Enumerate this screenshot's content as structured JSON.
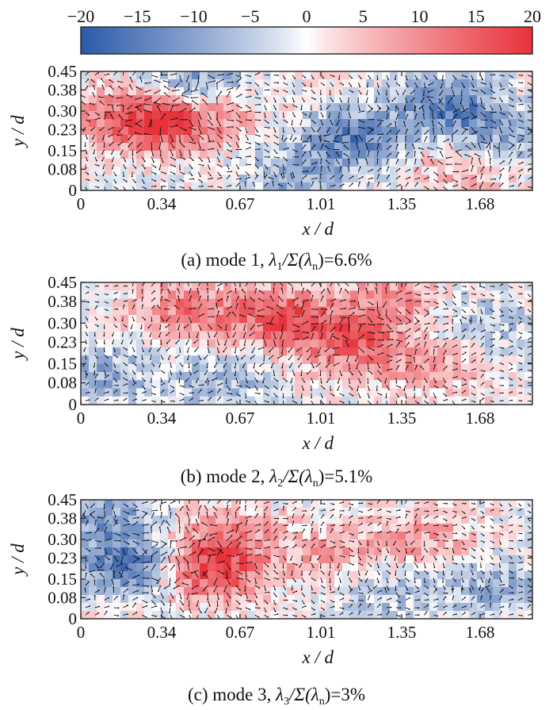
{
  "colorbar": {
    "min": -20,
    "max": 20,
    "ticks": [
      "−20",
      "−15",
      "−10",
      "−5",
      "0",
      "5",
      "10",
      "15",
      "20"
    ],
    "colors": {
      "negative": "#2c5aa8",
      "zero": "#ffffff",
      "positive": "#e8323a"
    }
  },
  "chart_data": [
    {
      "type": "heatmap",
      "mode": "mode 1",
      "caption": {
        "prefix": "(a) mode 1,",
        "lambda_sub": "1",
        "ratio": "/Σ(",
        "sub_n": "n",
        "value": ")=6.6%"
      },
      "xlabel": "x / d",
      "ylabel": "y / d",
      "xticks": [
        "0",
        "0.34",
        "0.67",
        "1.01",
        "1.35",
        "1.68"
      ],
      "yticks": [
        "0",
        "0.08",
        "0.15",
        "0.23",
        "0.30",
        "0.38",
        "0.45"
      ],
      "xlim": [
        0,
        1.9
      ],
      "ylim": [
        0,
        0.45
      ],
      "energy_fraction_percent": 6.6,
      "vorticity_features": [
        {
          "x": 0.32,
          "y": 0.25,
          "value": 18
        },
        {
          "x": 0.58,
          "y": 0.3,
          "value": 8
        },
        {
          "x": 0.12,
          "y": 0.3,
          "value": 6
        },
        {
          "x": 0.5,
          "y": 0.41,
          "value": -12
        },
        {
          "x": 1.15,
          "y": 0.2,
          "value": -14
        },
        {
          "x": 1.55,
          "y": 0.32,
          "value": -15
        },
        {
          "x": 1.78,
          "y": 0.18,
          "value": -10
        },
        {
          "x": 0.9,
          "y": 0.05,
          "value": -9
        },
        {
          "x": 1.62,
          "y": 0.09,
          "value": 8
        }
      ]
    },
    {
      "type": "heatmap",
      "mode": "mode 2",
      "caption": {
        "prefix": "(b) mode 2,",
        "lambda_sub": "2",
        "ratio": "/Σ(",
        "sub_n": "n",
        "value": ")=5.1%"
      },
      "xlabel": "x / d",
      "ylabel": "y / d",
      "xticks": [
        "0",
        "0.34",
        "0.67",
        "1.01",
        "1.35",
        "1.68"
      ],
      "yticks": [
        "0",
        "0.08",
        "0.15",
        "0.23",
        "0.30",
        "0.38",
        "0.45"
      ],
      "xlim": [
        0,
        1.9
      ],
      "ylim": [
        0,
        0.45
      ],
      "energy_fraction_percent": 5.1,
      "vorticity_features": [
        {
          "x": 0.45,
          "y": 0.35,
          "value": 12
        },
        {
          "x": 0.85,
          "y": 0.32,
          "value": 16
        },
        {
          "x": 1.15,
          "y": 0.22,
          "value": 14
        },
        {
          "x": 1.3,
          "y": 0.38,
          "value": 10
        },
        {
          "x": 0.1,
          "y": 0.12,
          "value": -8
        },
        {
          "x": 0.6,
          "y": 0.08,
          "value": -7
        },
        {
          "x": 1.5,
          "y": 0.12,
          "value": 7
        },
        {
          "x": 1.7,
          "y": 0.3,
          "value": -6
        }
      ]
    },
    {
      "type": "heatmap",
      "mode": "mode 3",
      "caption": {
        "prefix": "(c) mode 3,",
        "lambda_sub": "3",
        "ratio": "/Σ(",
        "sub_n": "n",
        "value": ")=3%"
      },
      "xlabel": "x / d",
      "ylabel": "y / d",
      "xticks": [
        "0",
        "0.34",
        "0.67",
        "1.01",
        "1.35",
        "1.68"
      ],
      "yticks": [
        "0",
        "0.08",
        "0.15",
        "0.23",
        "0.30",
        "0.38",
        "0.45"
      ],
      "xlim": [
        0,
        1.9
      ],
      "ylim": [
        0,
        0.45
      ],
      "energy_fraction_percent": 3,
      "vorticity_features": [
        {
          "x": 0.2,
          "y": 0.2,
          "value": -16
        },
        {
          "x": 0.12,
          "y": 0.38,
          "value": -10
        },
        {
          "x": 0.55,
          "y": 0.18,
          "value": 18
        },
        {
          "x": 0.6,
          "y": 0.32,
          "value": 10
        },
        {
          "x": 1.05,
          "y": 0.25,
          "value": 7
        },
        {
          "x": 1.45,
          "y": 0.3,
          "value": 8
        },
        {
          "x": 1.75,
          "y": 0.12,
          "value": -8
        },
        {
          "x": 1.3,
          "y": 0.1,
          "value": -6
        }
      ]
    }
  ]
}
